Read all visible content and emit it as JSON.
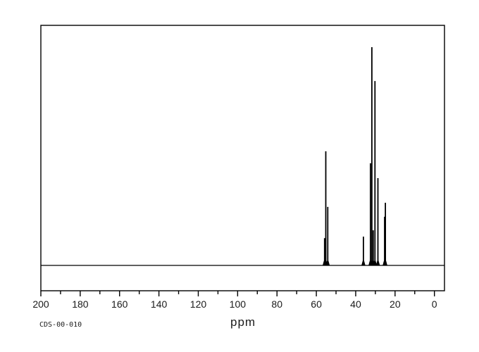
{
  "page": {
    "background": "#ffffff",
    "line_color": "#000000",
    "text_color": "#1a1a1a"
  },
  "footer": {
    "spectrum_id": "CDS-00-010",
    "axis_unit": "ppm"
  },
  "chart_data": {
    "type": "line",
    "subtype": "13C-NMR-spectrum",
    "title": "",
    "xlabel": "ppm",
    "ylabel": "",
    "grid": false,
    "line_color": "#000000",
    "x_axis": {
      "min": 0,
      "max": 200,
      "reversed": true,
      "major_tick_step": 20,
      "minor_tick_step": 10,
      "tick_labels": [
        "200",
        "180",
        "160",
        "140",
        "120",
        "100",
        "80",
        "60",
        "40",
        "20",
        "0"
      ]
    },
    "peaks": [
      {
        "ppm": 55.8,
        "intensity": 12.5
      },
      {
        "ppm": 55.2,
        "intensity": 52.3
      },
      {
        "ppm": 54.2,
        "intensity": 26.8
      },
      {
        "ppm": 36.1,
        "intensity": 13.2
      },
      {
        "ppm": 32.5,
        "intensity": 46.8
      },
      {
        "ppm": 31.8,
        "intensity": 100
      },
      {
        "ppm": 31.1,
        "intensity": 16.1
      },
      {
        "ppm": 30.2,
        "intensity": 84.5
      },
      {
        "ppm": 28.7,
        "intensity": 40.0
      },
      {
        "ppm": 25.3,
        "intensity": 22.3
      },
      {
        "ppm": 24.9,
        "intensity": 28.7
      }
    ],
    "annotation": "CDS-00-010"
  }
}
